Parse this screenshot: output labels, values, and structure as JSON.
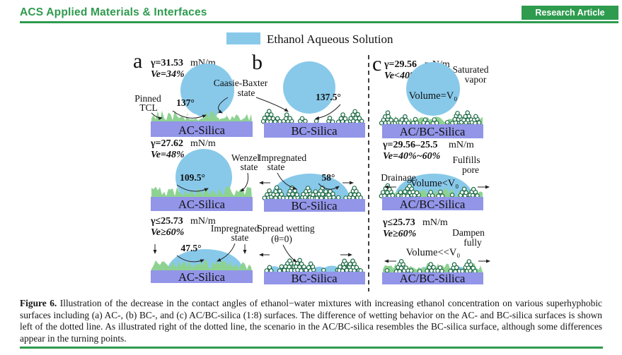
{
  "header": {
    "journal": "ACS Applied Materials & Interfaces",
    "badge": "Research Article"
  },
  "colors": {
    "accent_green": "#2e9b4e",
    "droplet_blue": "#88c9ea",
    "grass_green": "#8ed292",
    "particle_outline": "#1e6b45",
    "substrate_purple": "#9295e8"
  },
  "figure": {
    "legend": "Ethanol Aqueous Solution",
    "shared": {
      "cassie_line1": "Caasie-Baxter",
      "cassie_line2": "state"
    },
    "panels": [
      {
        "label": "a",
        "rows": [
          {
            "gamma": "γ=31.53",
            "unit": "mN/m",
            "ve": "Ve=34%",
            "angle": "137°",
            "note1": "Pinned",
            "note2": "TCL",
            "surface": "AC-Silica"
          },
          {
            "gamma": "γ=27.62",
            "unit": "mN/m",
            "ve": "Ve=48%",
            "angle": "109.5°",
            "state1": "Wenzel",
            "state2": "state",
            "surface": "AC-Silica"
          },
          {
            "gamma": "γ≤25.73",
            "unit": "mN/m",
            "ve": "Ve≥60%",
            "angle": "47.5°",
            "state1": "Impregnated",
            "state2": "state",
            "surface": "AC-Silica"
          }
        ]
      },
      {
        "label": "b",
        "rows": [
          {
            "angle": "137.5°",
            "surface": "BC-Silica"
          },
          {
            "angle": "58°",
            "state1": "Impregnated",
            "state2": "state",
            "surface": "BC-Silica"
          },
          {
            "state1": "Spread wetting",
            "state2": "(θ=0)",
            "surface": "BC-Silica"
          }
        ]
      },
      {
        "label": "c",
        "rows": [
          {
            "gamma": "γ=29.56",
            "unit": "mN/m",
            "ve": "Ve<40%",
            "note1": "Saturated",
            "note2": "vapor",
            "volume": "Volume=V₀",
            "surface": "AC/BC-Silica"
          },
          {
            "gamma": "γ=29.56–25.5",
            "unit": "mN/m",
            "ve": "Ve=40%~60%",
            "note1": "Fulfills",
            "note2": "pore",
            "drainage": "Drainage",
            "volume": "Volume<V₀",
            "surface": "AC/BC-Silica"
          },
          {
            "gamma": "γ≤25.73",
            "unit": "mN/m",
            "ve": "Ve≥60%",
            "note1": "Dampen",
            "note2": "fully",
            "volume": "Volume<<V₀",
            "surface": "AC/BC-Silica"
          }
        ]
      }
    ]
  },
  "caption": {
    "label": "Figure 6.",
    "text": "Illustration of the decrease in the contact angles of ethanol−water mixtures with increasing ethanol concentration on various superhyphobic surfaces including (a) AC-, (b) BC-, and (c) AC/BC-silica (1:8) surfaces. The difference of wetting behavior on the AC- and BC-silica surfaces is shown left of the dotted line. As illustrated right of the dotted line, the scenario in the AC/BC-silica resembles the BC-silica surface, although some differences appear in the turning points."
  }
}
